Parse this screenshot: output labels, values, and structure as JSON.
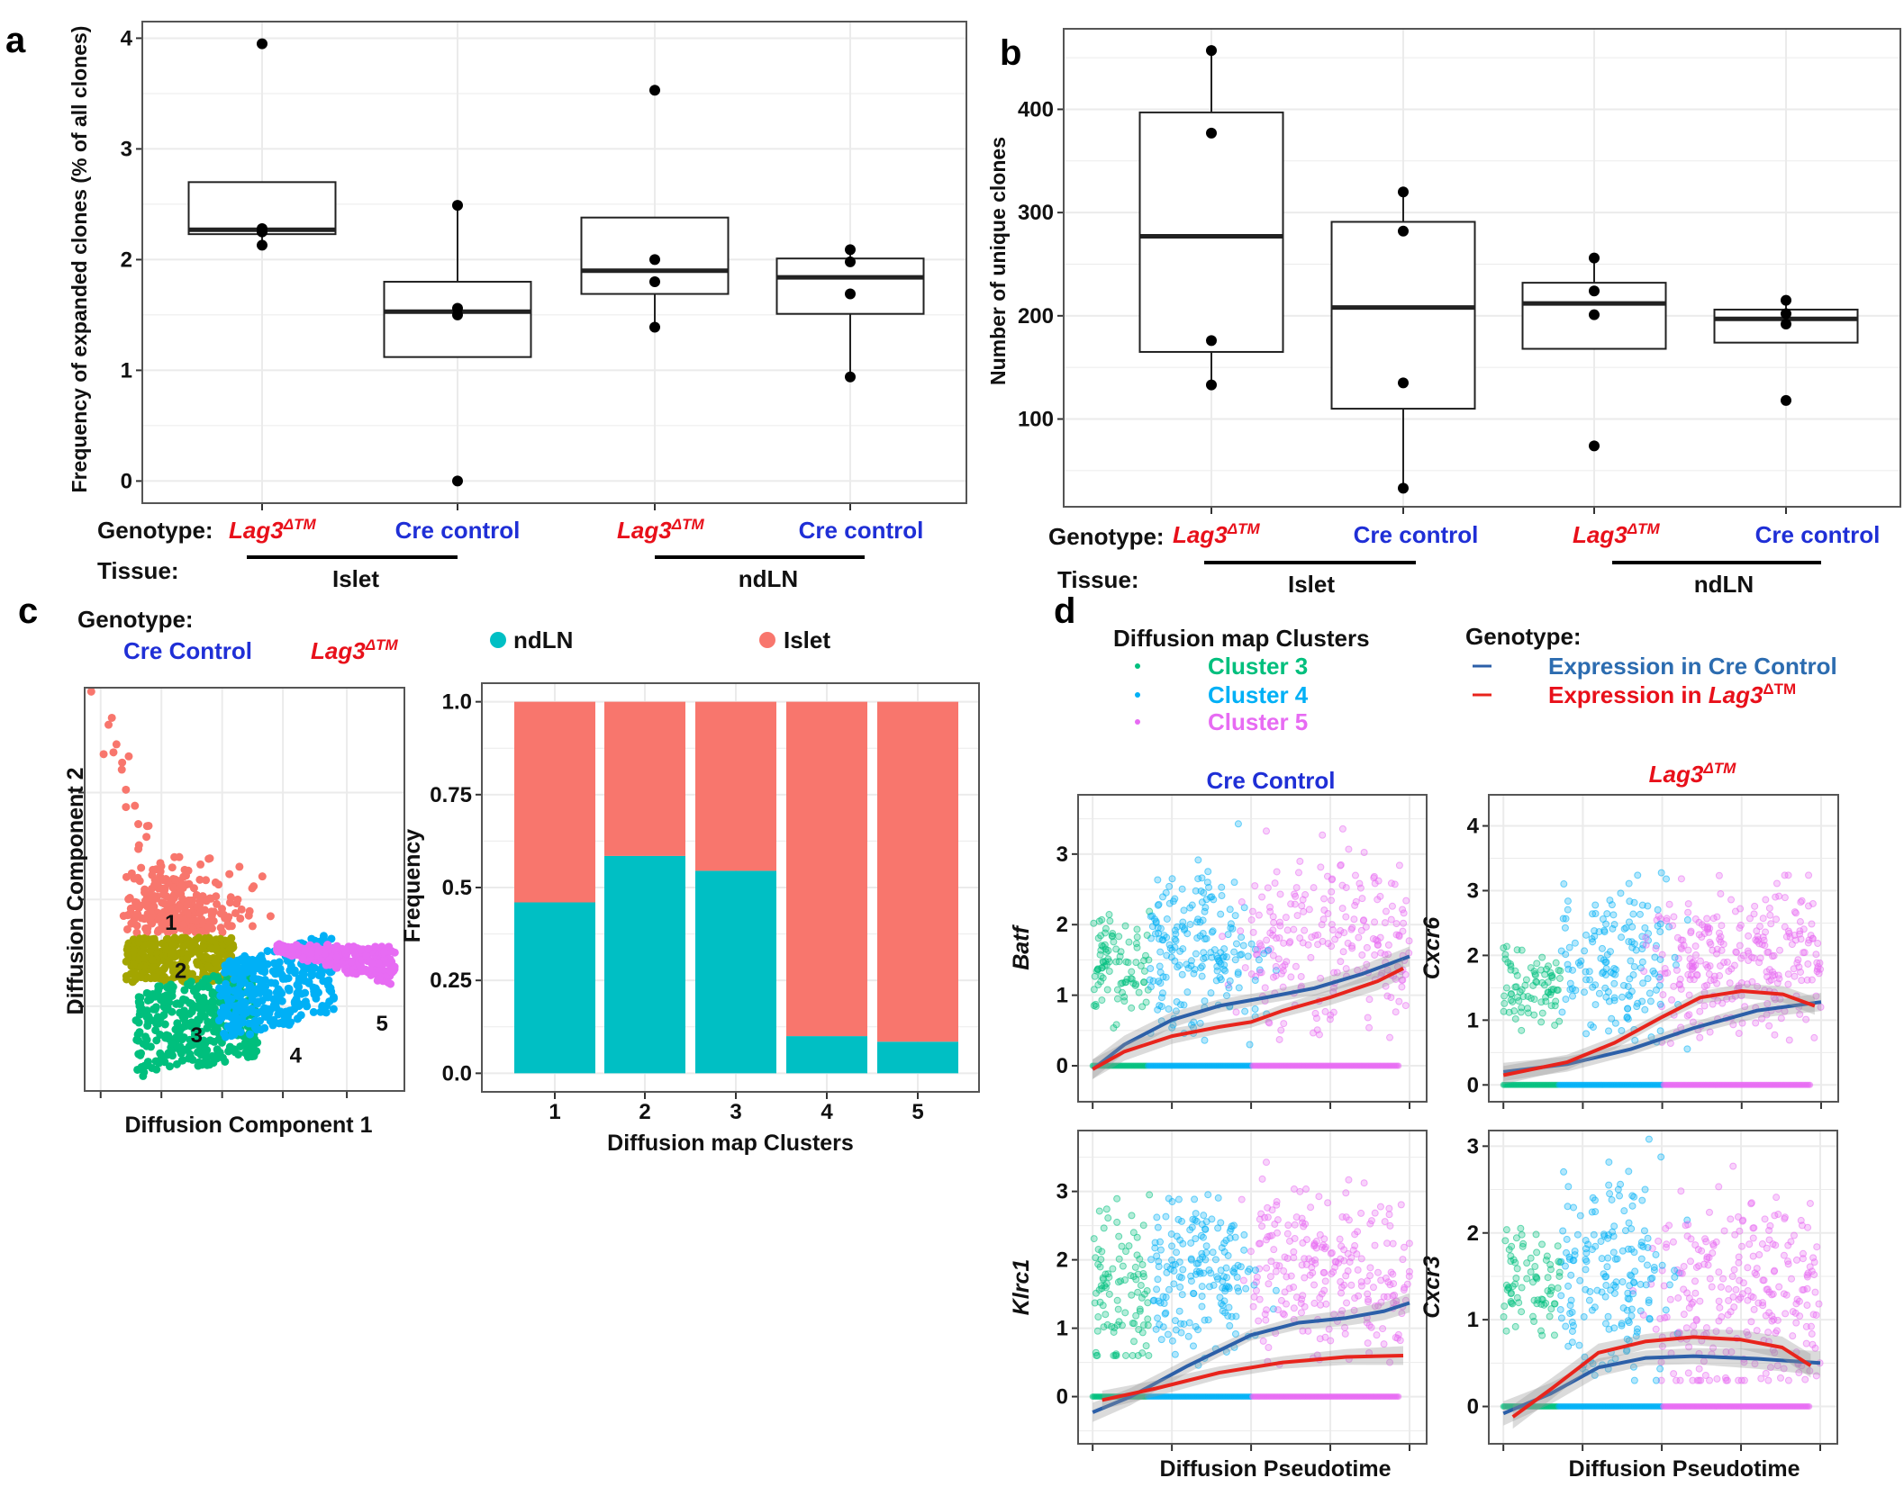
{
  "colors": {
    "lag3": "#e8101a",
    "cre": "#1f2fd6",
    "ndLN": "#00bfc4",
    "islet": "#f8766d",
    "cluster1": "#f8766d",
    "cluster2": "#a3a500",
    "cluster3": "#00bf7d",
    "cluster4": "#00b0f6",
    "cluster5": "#e76bf3",
    "line_cre": "#2c5fa8",
    "line_lag3": "#e8241c"
  },
  "labels": {
    "panel_a": "a",
    "panel_b": "b",
    "panel_c": "c",
    "panel_d": "d",
    "genotype": "Genotype:",
    "tissue": "Tissue:",
    "lag3": "Lag3",
    "lag3_sup": "ΔTM",
    "cre_control": "Cre control",
    "cre_control_cap": "Cre Control",
    "islet": "Islet",
    "ndln": "ndLN",
    "dc1": "Diffusion Component 1",
    "dc2": "Diffusion Component 2",
    "frequency": "Frequency",
    "dm_clusters": "Diffusion map Clusters",
    "cluster3": "Cluster 3",
    "cluster4": "Cluster 4",
    "cluster5": "Cluster 5",
    "expr_cre": "Expression in Cre Control",
    "expr_lag3_prefix": "Expression in ",
    "pseudotime": "Diffusion Pseudotime",
    "lag3_title": "Lag3"
  },
  "chart_data": [
    {
      "id": "a",
      "type": "box",
      "ylabel": "Frequency of expanded clones (% of all clones)",
      "ylim": [
        -0.2,
        4.15
      ],
      "yticks": [
        0,
        1,
        2,
        3,
        4
      ],
      "grid": true,
      "categories": [
        "Lag3ΔTM Islet",
        "Cre control Islet",
        "Lag3ΔTM ndLN",
        "Cre control ndLN"
      ],
      "boxes": [
        {
          "q1": 2.23,
          "median": 2.27,
          "q3": 2.7,
          "whisker_low": 2.13,
          "whisker_high": 2.7,
          "points": [
            3.95,
            2.28,
            2.25,
            2.13
          ]
        },
        {
          "q1": 1.12,
          "median": 1.53,
          "q3": 1.8,
          "whisker_low": 1.12,
          "whisker_high": 2.49,
          "points": [
            2.49,
            1.56,
            1.5,
            0.0
          ]
        },
        {
          "q1": 1.69,
          "median": 1.9,
          "q3": 2.38,
          "whisker_low": 1.39,
          "whisker_high": 2.38,
          "points": [
            3.53,
            2.0,
            1.8,
            1.39
          ]
        },
        {
          "q1": 1.51,
          "median": 1.84,
          "q3": 2.01,
          "whisker_low": 0.94,
          "whisker_high": 2.09,
          "points": [
            2.09,
            1.98,
            1.69,
            0.94
          ]
        }
      ]
    },
    {
      "id": "b",
      "type": "box",
      "ylabel": "Number of unique clones",
      "ylim": [
        15,
        478
      ],
      "yticks": [
        100,
        200,
        300,
        400
      ],
      "grid": true,
      "categories": [
        "Lag3ΔTM Islet",
        "Cre control Islet",
        "Lag3ΔTM ndLN",
        "Cre control ndLN"
      ],
      "boxes": [
        {
          "q1": 165,
          "median": 277,
          "q3": 397,
          "whisker_low": 133,
          "whisker_high": 457,
          "points": [
            457,
            377,
            176,
            133
          ]
        },
        {
          "q1": 110,
          "median": 208,
          "q3": 291,
          "whisker_low": 33,
          "whisker_high": 320,
          "points": [
            320,
            282,
            135,
            33
          ]
        },
        {
          "q1": 168,
          "median": 212,
          "q3": 232,
          "whisker_low": 168,
          "whisker_high": 256,
          "points": [
            256,
            224,
            201,
            74
          ]
        },
        {
          "q1": 174,
          "median": 197,
          "q3": 206,
          "whisker_low": 174,
          "whisker_high": 215,
          "points": [
            215,
            202,
            192,
            118
          ]
        }
      ]
    },
    {
      "id": "c-scatter",
      "type": "scatter",
      "xlabel": "Diffusion Component 1",
      "ylabel": "Diffusion Component 2",
      "cluster_labels": [
        "1",
        "2",
        "3",
        "4",
        "5"
      ],
      "grid": true
    },
    {
      "id": "c-bar",
      "type": "bar",
      "stacked": true,
      "xlabel": "Diffusion map Clusters",
      "ylabel": "Frequency",
      "ylim": [
        0,
        1
      ],
      "yticks": [
        "0.0",
        "0.25",
        "0.5",
        "0.75",
        "1.0"
      ],
      "categories": [
        "1",
        "2",
        "3",
        "4",
        "5"
      ],
      "legend": "top",
      "series": [
        {
          "name": "ndLN",
          "values": [
            0.46,
            0.585,
            0.545,
            0.1,
            0.085
          ]
        },
        {
          "name": "Islet",
          "values": [
            0.54,
            0.415,
            0.455,
            0.9,
            0.915
          ]
        }
      ]
    },
    {
      "id": "d",
      "type": "scatter+line",
      "xlabel": "Diffusion Pseudotime",
      "xlim": [
        -0.046,
        1.054
      ],
      "legend": "top",
      "panels": [
        {
          "gene": "Batf",
          "column": "Cre Control",
          "ylim": [
            -0.51,
            3.84
          ],
          "yticks": [
            0,
            1,
            2,
            3
          ],
          "cre": [
            [
              0,
              -0.05
            ],
            [
              0.1,
              0.3
            ],
            [
              0.25,
              0.65
            ],
            [
              0.4,
              0.85
            ],
            [
              0.55,
              0.97
            ],
            [
              0.7,
              1.1
            ],
            [
              0.85,
              1.3
            ],
            [
              1.0,
              1.55
            ]
          ],
          "lag3": [
            [
              0,
              -0.05
            ],
            [
              0.1,
              0.2
            ],
            [
              0.25,
              0.42
            ],
            [
              0.4,
              0.55
            ],
            [
              0.5,
              0.62
            ],
            [
              0.6,
              0.78
            ],
            [
              0.75,
              0.97
            ],
            [
              0.9,
              1.2
            ],
            [
              0.98,
              1.38
            ]
          ]
        },
        {
          "gene": "Cxcr6",
          "column": "Lag3ΔTM",
          "ylim": [
            -0.26,
            4.48
          ],
          "yticks": [
            0,
            1,
            2,
            3,
            4
          ],
          "cre": [
            [
              0,
              0.2
            ],
            [
              0.2,
              0.32
            ],
            [
              0.4,
              0.55
            ],
            [
              0.6,
              0.88
            ],
            [
              0.8,
              1.15
            ],
            [
              1.0,
              1.28
            ]
          ],
          "lag3": [
            [
              0,
              0.15
            ],
            [
              0.2,
              0.35
            ],
            [
              0.35,
              0.65
            ],
            [
              0.5,
              1.05
            ],
            [
              0.62,
              1.35
            ],
            [
              0.75,
              1.45
            ],
            [
              0.88,
              1.4
            ],
            [
              0.98,
              1.22
            ]
          ]
        },
        {
          "gene": "Klrc1",
          "column": "Cre Control",
          "ylim": [
            -0.69,
            3.89
          ],
          "yticks": [
            0,
            1,
            2,
            3
          ],
          "cre": [
            [
              0,
              -0.23
            ],
            [
              0.12,
              0.0
            ],
            [
              0.3,
              0.45
            ],
            [
              0.5,
              0.9
            ],
            [
              0.65,
              1.08
            ],
            [
              0.8,
              1.15
            ],
            [
              0.92,
              1.25
            ],
            [
              1.0,
              1.37
            ]
          ],
          "lag3": [
            [
              0.03,
              -0.05
            ],
            [
              0.2,
              0.12
            ],
            [
              0.4,
              0.35
            ],
            [
              0.6,
              0.5
            ],
            [
              0.8,
              0.58
            ],
            [
              0.98,
              0.6
            ]
          ]
        },
        {
          "gene": "Cxcr3",
          "column": "Lag3ΔTM",
          "ylim": [
            -0.43,
            3.18
          ],
          "yticks": [
            0,
            1,
            2,
            3
          ],
          "cre": [
            [
              0,
              -0.08
            ],
            [
              0.15,
              0.15
            ],
            [
              0.3,
              0.45
            ],
            [
              0.45,
              0.56
            ],
            [
              0.6,
              0.58
            ],
            [
              0.8,
              0.55
            ],
            [
              1.0,
              0.5
            ]
          ],
          "lag3": [
            [
              0.03,
              -0.12
            ],
            [
              0.15,
              0.2
            ],
            [
              0.3,
              0.62
            ],
            [
              0.45,
              0.75
            ],
            [
              0.6,
              0.8
            ],
            [
              0.75,
              0.77
            ],
            [
              0.88,
              0.68
            ],
            [
              0.97,
              0.47
            ]
          ]
        }
      ]
    }
  ]
}
